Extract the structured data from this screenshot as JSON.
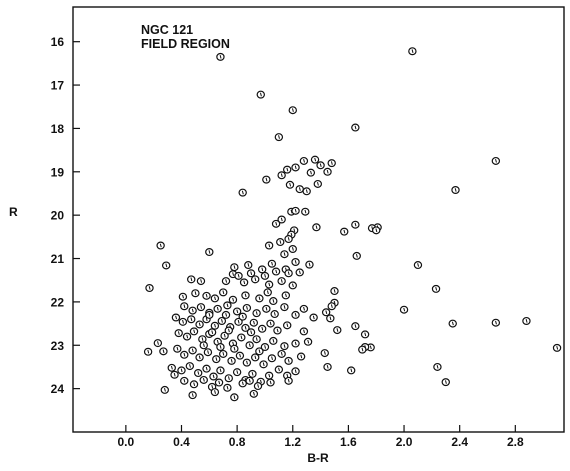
{
  "chart_data": {
    "type": "scatter",
    "title": [
      "NGC 121",
      "FIELD REGION"
    ],
    "xlabel": "B-R",
    "ylabel": "R",
    "xlim": [
      -0.38,
      3.15
    ],
    "ylim": [
      15.2,
      25.0
    ],
    "y_inverted": true,
    "grid": false,
    "x_ticks": [
      0.0,
      0.4,
      0.8,
      1.2,
      1.6,
      2.0,
      2.4,
      2.8
    ],
    "x_tick_labels": [
      "0.0",
      "0.4",
      "0.8",
      "1.2",
      "1.6",
      "2.0",
      "2.4",
      "2.8"
    ],
    "y_ticks": [
      16,
      17,
      18,
      19,
      20,
      21,
      22,
      23,
      24
    ],
    "y_tick_labels": [
      "16",
      "17",
      "18",
      "19",
      "20",
      "21",
      "22",
      "23",
      "24"
    ],
    "points": [
      [
        0.68,
        16.35
      ],
      [
        2.06,
        16.22
      ],
      [
        0.97,
        17.22
      ],
      [
        1.2,
        17.58
      ],
      [
        1.1,
        18.2
      ],
      [
        1.65,
        17.98
      ],
      [
        1.28,
        18.75
      ],
      [
        1.36,
        18.72
      ],
      [
        1.48,
        18.8
      ],
      [
        1.16,
        18.95
      ],
      [
        1.22,
        18.9
      ],
      [
        1.4,
        18.85
      ],
      [
        1.45,
        19.0
      ],
      [
        1.01,
        19.18
      ],
      [
        1.12,
        19.08
      ],
      [
        1.18,
        19.3
      ],
      [
        1.25,
        19.4
      ],
      [
        1.3,
        19.45
      ],
      [
        1.38,
        19.28
      ],
      [
        1.33,
        19.02
      ],
      [
        2.66,
        18.75
      ],
      [
        0.84,
        19.48
      ],
      [
        2.37,
        19.42
      ],
      [
        1.19,
        19.92
      ],
      [
        1.29,
        19.92
      ],
      [
        1.22,
        19.9
      ],
      [
        1.12,
        20.1
      ],
      [
        1.08,
        20.2
      ],
      [
        1.21,
        20.35
      ],
      [
        1.65,
        20.22
      ],
      [
        1.81,
        20.28
      ],
      [
        1.77,
        20.3
      ],
      [
        1.8,
        20.35
      ],
      [
        1.19,
        20.45
      ],
      [
        1.37,
        20.28
      ],
      [
        1.57,
        20.38
      ],
      [
        1.17,
        20.55
      ],
      [
        1.11,
        20.62
      ],
      [
        1.03,
        20.7
      ],
      [
        0.25,
        20.7
      ],
      [
        1.2,
        20.78
      ],
      [
        0.6,
        20.85
      ],
      [
        1.14,
        20.9
      ],
      [
        1.66,
        20.94
      ],
      [
        0.29,
        21.16
      ],
      [
        1.05,
        21.12
      ],
      [
        1.22,
        21.08
      ],
      [
        0.78,
        21.2
      ],
      [
        0.88,
        21.15
      ],
      [
        0.98,
        21.25
      ],
      [
        1.15,
        21.25
      ],
      [
        1.32,
        21.14
      ],
      [
        2.1,
        21.15
      ],
      [
        0.77,
        21.36
      ],
      [
        0.81,
        21.4
      ],
      [
        0.9,
        21.34
      ],
      [
        1.0,
        21.4
      ],
      [
        1.08,
        21.3
      ],
      [
        1.17,
        21.34
      ],
      [
        1.25,
        21.32
      ],
      [
        0.47,
        21.48
      ],
      [
        0.54,
        21.52
      ],
      [
        0.72,
        21.52
      ],
      [
        0.85,
        21.55
      ],
      [
        0.93,
        21.48
      ],
      [
        1.03,
        21.6
      ],
      [
        1.12,
        21.52
      ],
      [
        1.2,
        21.62
      ],
      [
        0.17,
        21.68
      ],
      [
        2.23,
        21.7
      ],
      [
        0.41,
        21.88
      ],
      [
        0.5,
        21.8
      ],
      [
        0.58,
        21.86
      ],
      [
        0.64,
        21.92
      ],
      [
        0.7,
        21.78
      ],
      [
        0.77,
        21.95
      ],
      [
        0.86,
        21.85
      ],
      [
        0.96,
        21.92
      ],
      [
        1.02,
        21.78
      ],
      [
        1.06,
        21.98
      ],
      [
        1.15,
        21.85
      ],
      [
        1.5,
        21.75
      ],
      [
        1.5,
        22.02
      ],
      [
        1.48,
        22.1
      ],
      [
        0.42,
        22.1
      ],
      [
        0.48,
        22.2
      ],
      [
        0.54,
        22.12
      ],
      [
        0.6,
        22.25
      ],
      [
        0.66,
        22.16
      ],
      [
        0.73,
        22.08
      ],
      [
        0.8,
        22.22
      ],
      [
        0.87,
        22.14
      ],
      [
        0.94,
        22.26
      ],
      [
        1.01,
        22.16
      ],
      [
        1.07,
        22.28
      ],
      [
        1.14,
        22.12
      ],
      [
        1.22,
        22.3
      ],
      [
        1.28,
        22.16
      ],
      [
        1.35,
        22.36
      ],
      [
        1.44,
        22.24
      ],
      [
        1.47,
        22.38
      ],
      [
        2.0,
        22.18
      ],
      [
        0.36,
        22.36
      ],
      [
        0.41,
        22.46
      ],
      [
        0.47,
        22.4
      ],
      [
        0.53,
        22.52
      ],
      [
        0.58,
        22.4
      ],
      [
        0.64,
        22.55
      ],
      [
        0.69,
        22.44
      ],
      [
        0.75,
        22.58
      ],
      [
        0.81,
        22.46
      ],
      [
        0.86,
        22.6
      ],
      [
        0.92,
        22.48
      ],
      [
        0.98,
        22.62
      ],
      [
        1.04,
        22.5
      ],
      [
        1.09,
        22.66
      ],
      [
        1.16,
        22.54
      ],
      [
        1.28,
        22.68
      ],
      [
        1.65,
        22.56
      ],
      [
        2.35,
        22.5
      ],
      [
        2.66,
        22.48
      ],
      [
        2.88,
        22.44
      ],
      [
        1.72,
        22.75
      ],
      [
        1.52,
        22.65
      ],
      [
        0.38,
        22.72
      ],
      [
        0.44,
        22.8
      ],
      [
        0.49,
        22.68
      ],
      [
        0.55,
        22.86
      ],
      [
        0.6,
        22.74
      ],
      [
        0.66,
        22.92
      ],
      [
        0.71,
        22.78
      ],
      [
        0.77,
        22.96
      ],
      [
        0.83,
        22.82
      ],
      [
        0.89,
        23.0
      ],
      [
        0.94,
        22.86
      ],
      [
        1.0,
        23.04
      ],
      [
        1.06,
        22.9
      ],
      [
        1.14,
        23.02
      ],
      [
        1.22,
        22.96
      ],
      [
        1.31,
        22.92
      ],
      [
        0.23,
        22.95
      ],
      [
        3.1,
        23.06
      ],
      [
        1.76,
        23.05
      ],
      [
        1.72,
        23.04
      ],
      [
        0.16,
        23.15
      ],
      [
        0.27,
        23.14
      ],
      [
        0.37,
        23.08
      ],
      [
        0.42,
        23.22
      ],
      [
        0.48,
        23.12
      ],
      [
        0.53,
        23.28
      ],
      [
        0.59,
        23.16
      ],
      [
        0.65,
        23.32
      ],
      [
        0.7,
        23.2
      ],
      [
        0.76,
        23.36
      ],
      [
        0.82,
        23.24
      ],
      [
        0.87,
        23.4
      ],
      [
        0.93,
        23.28
      ],
      [
        0.99,
        23.44
      ],
      [
        1.05,
        23.3
      ],
      [
        1.12,
        23.2
      ],
      [
        1.17,
        23.36
      ],
      [
        1.26,
        23.26
      ],
      [
        1.43,
        23.18
      ],
      [
        1.7,
        23.1
      ],
      [
        0.33,
        23.52
      ],
      [
        0.4,
        23.58
      ],
      [
        0.46,
        23.48
      ],
      [
        0.52,
        23.64
      ],
      [
        0.58,
        23.54
      ],
      [
        0.63,
        23.72
      ],
      [
        0.68,
        23.58
      ],
      [
        0.74,
        23.76
      ],
      [
        0.8,
        23.62
      ],
      [
        0.86,
        23.8
      ],
      [
        0.91,
        23.66
      ],
      [
        0.97,
        23.84
      ],
      [
        1.03,
        23.7
      ],
      [
        1.1,
        23.56
      ],
      [
        1.16,
        23.7
      ],
      [
        1.22,
        23.6
      ],
      [
        1.45,
        23.5
      ],
      [
        1.62,
        23.58
      ],
      [
        2.24,
        23.5
      ],
      [
        0.35,
        23.68
      ],
      [
        0.42,
        23.82
      ],
      [
        0.49,
        23.9
      ],
      [
        0.56,
        23.8
      ],
      [
        0.62,
        23.96
      ],
      [
        0.67,
        23.86
      ],
      [
        0.73,
        23.98
      ],
      [
        0.84,
        23.88
      ],
      [
        0.89,
        23.82
      ],
      [
        0.95,
        23.94
      ],
      [
        1.04,
        23.86
      ],
      [
        1.17,
        23.82
      ],
      [
        2.3,
        23.85
      ],
      [
        0.28,
        24.03
      ],
      [
        0.48,
        24.15
      ],
      [
        0.64,
        24.08
      ],
      [
        0.78,
        24.2
      ],
      [
        0.92,
        24.12
      ],
      [
        0.6,
        22.3
      ],
      [
        0.62,
        22.7
      ],
      [
        0.72,
        22.3
      ],
      [
        0.74,
        22.66
      ],
      [
        0.84,
        22.34
      ],
      [
        0.56,
        23.0
      ],
      [
        0.78,
        23.08
      ],
      [
        0.68,
        23.04
      ],
      [
        0.9,
        22.7
      ],
      [
        0.96,
        23.14
      ]
    ]
  }
}
